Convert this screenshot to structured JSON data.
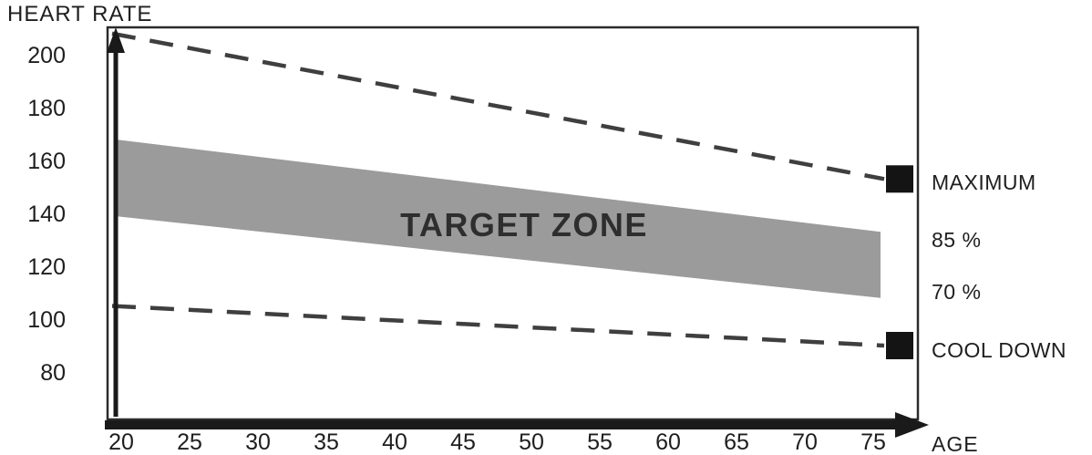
{
  "chart_data": {
    "type": "area",
    "title": "TARGET ZONE",
    "xlabel": "AGE",
    "ylabel": "HEART RATE",
    "x_ticks": [
      20,
      25,
      30,
      35,
      40,
      45,
      50,
      55,
      60,
      65,
      70,
      75
    ],
    "y_ticks": [
      200,
      180,
      160,
      140,
      120,
      100,
      80
    ],
    "xlim": [
      20,
      78
    ],
    "ylim": [
      62,
      215
    ],
    "grid": false,
    "legend_position": "right",
    "band_color": "#9b9b9b",
    "line_color": "#3f3f3f",
    "axis_color": "#1a1a1a",
    "series": [
      {
        "name": "MAXIMUM",
        "type": "dashed-line",
        "x": [
          20,
          75
        ],
        "y": [
          208,
          153
        ],
        "marker": "black-square"
      },
      {
        "name": "85 %",
        "type": "band-upper",
        "x": [
          20,
          75
        ],
        "y": [
          168,
          133
        ]
      },
      {
        "name": "70 %",
        "type": "band-lower",
        "x": [
          20,
          75
        ],
        "y": [
          139,
          108
        ]
      },
      {
        "name": "COOL DOWN",
        "type": "dashed-line",
        "x": [
          20,
          75
        ],
        "y": [
          105,
          90
        ],
        "marker": "black-square"
      }
    ]
  }
}
